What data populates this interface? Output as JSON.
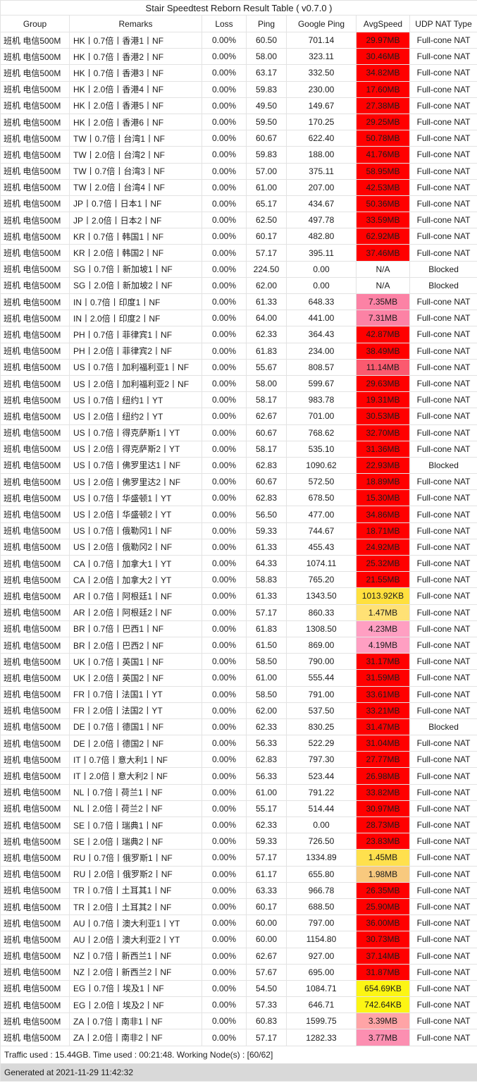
{
  "title": "Stair Speedtest Reborn Result Table ( v0.7.0 )",
  "palette": {
    "speed_red": "#FF0000",
    "speed_coral": "#FB5A6F",
    "speed_pink": "#FC82A5",
    "speed_light_pink": "#FF9FC2",
    "speed_rose": "#FC8FB1",
    "speed_salmon": "#FFA4A6",
    "speed_orange": "#F8C97E",
    "speed_pale_yellow": "#FFE175",
    "speed_yellow": "#FFE04D",
    "speed_gold": "#FFE03E",
    "speed_bright_yellow": "#FCF514",
    "generated_row_bg": "#D9D9D9",
    "border": "#E3E3E3"
  },
  "table": {
    "columns": [
      "Group",
      "Remarks",
      "Loss",
      "Ping",
      "Google Ping",
      "AvgSpeed",
      "UDP NAT Type"
    ],
    "column_keys": [
      "group",
      "remarks",
      "loss",
      "ping",
      "google_ping",
      "avgspeed",
      "udp_nat_type"
    ],
    "rows": [
      {
        "group": "班机 电信500M",
        "remarks": "HK丨0.7倍丨香港1丨NF",
        "loss": "0.00%",
        "ping": "60.50",
        "google_ping": "701.14",
        "avgspeed": "29.97MB",
        "speed_color": "#FF0000",
        "nat": "Full-cone NAT"
      },
      {
        "group": "班机 电信500M",
        "remarks": "HK丨0.7倍丨香港2丨NF",
        "loss": "0.00%",
        "ping": "58.00",
        "google_ping": "323.11",
        "avgspeed": "30.46MB",
        "speed_color": "#FF0000",
        "nat": "Full-cone NAT"
      },
      {
        "group": "班机 电信500M",
        "remarks": "HK丨0.7倍丨香港3丨NF",
        "loss": "0.00%",
        "ping": "63.17",
        "google_ping": "332.50",
        "avgspeed": "34.82MB",
        "speed_color": "#FF0000",
        "nat": "Full-cone NAT"
      },
      {
        "group": "班机 电信500M",
        "remarks": "HK丨2.0倍丨香港4丨NF",
        "loss": "0.00%",
        "ping": "59.83",
        "google_ping": "230.00",
        "avgspeed": "17.60MB",
        "speed_color": "#FF0000",
        "nat": "Full-cone NAT"
      },
      {
        "group": "班机 电信500M",
        "remarks": "HK丨2.0倍丨香港5丨NF",
        "loss": "0.00%",
        "ping": "49.50",
        "google_ping": "149.67",
        "avgspeed": "27.38MB",
        "speed_color": "#FF0000",
        "nat": "Full-cone NAT"
      },
      {
        "group": "班机 电信500M",
        "remarks": "HK丨2.0倍丨香港6丨NF",
        "loss": "0.00%",
        "ping": "59.50",
        "google_ping": "170.25",
        "avgspeed": "29.25MB",
        "speed_color": "#FF0000",
        "nat": "Full-cone NAT"
      },
      {
        "group": "班机 电信500M",
        "remarks": "TW丨0.7倍丨台湾1丨NF",
        "loss": "0.00%",
        "ping": "60.67",
        "google_ping": "622.40",
        "avgspeed": "50.78MB",
        "speed_color": "#FF0000",
        "nat": "Full-cone NAT"
      },
      {
        "group": "班机 电信500M",
        "remarks": "TW丨2.0倍丨台湾2丨NF",
        "loss": "0.00%",
        "ping": "59.83",
        "google_ping": "188.00",
        "avgspeed": "41.76MB",
        "speed_color": "#FF0000",
        "nat": "Full-cone NAT"
      },
      {
        "group": "班机 电信500M",
        "remarks": "TW丨0.7倍丨台湾3丨NF",
        "loss": "0.00%",
        "ping": "57.00",
        "google_ping": "375.11",
        "avgspeed": "58.95MB",
        "speed_color": "#FF0000",
        "nat": "Full-cone NAT"
      },
      {
        "group": "班机 电信500M",
        "remarks": "TW丨2.0倍丨台湾4丨NF",
        "loss": "0.00%",
        "ping": "61.00",
        "google_ping": "207.00",
        "avgspeed": "42.53MB",
        "speed_color": "#FF0000",
        "nat": "Full-cone NAT"
      },
      {
        "group": "班机 电信500M",
        "remarks": "JP丨0.7倍丨日本1丨NF",
        "loss": "0.00%",
        "ping": "65.17",
        "google_ping": "434.67",
        "avgspeed": "50.36MB",
        "speed_color": "#FF0000",
        "nat": "Full-cone NAT"
      },
      {
        "group": "班机 电信500M",
        "remarks": "JP丨2.0倍丨日本2丨NF",
        "loss": "0.00%",
        "ping": "62.50",
        "google_ping": "497.78",
        "avgspeed": "33.59MB",
        "speed_color": "#FF0000",
        "nat": "Full-cone NAT"
      },
      {
        "group": "班机 电信500M",
        "remarks": "KR丨0.7倍丨韩国1丨NF",
        "loss": "0.00%",
        "ping": "60.17",
        "google_ping": "482.80",
        "avgspeed": "62.92MB",
        "speed_color": "#FF0000",
        "nat": "Full-cone NAT"
      },
      {
        "group": "班机 电信500M",
        "remarks": "KR丨2.0倍丨韩国2丨NF",
        "loss": "0.00%",
        "ping": "57.17",
        "google_ping": "395.11",
        "avgspeed": "37.46MB",
        "speed_color": "#FF0000",
        "nat": "Full-cone NAT"
      },
      {
        "group": "班机 电信500M",
        "remarks": "SG丨0.7倍丨新加坡1丨NF",
        "loss": "0.00%",
        "ping": "224.50",
        "google_ping": "0.00",
        "avgspeed": "N/A",
        "speed_color": "",
        "nat": "Blocked"
      },
      {
        "group": "班机 电信500M",
        "remarks": "SG丨2.0倍丨新加坡2丨NF",
        "loss": "0.00%",
        "ping": "62.00",
        "google_ping": "0.00",
        "avgspeed": "N/A",
        "speed_color": "",
        "nat": "Blocked"
      },
      {
        "group": "班机 电信500M",
        "remarks": "IN丨0.7倍丨印度1丨NF",
        "loss": "0.00%",
        "ping": "61.33",
        "google_ping": "648.33",
        "avgspeed": "7.35MB",
        "speed_color": "#FC82A5",
        "nat": "Full-cone NAT"
      },
      {
        "group": "班机 电信500M",
        "remarks": "IN丨2.0倍丨印度2丨NF",
        "loss": "0.00%",
        "ping": "64.00",
        "google_ping": "441.00",
        "avgspeed": "7.31MB",
        "speed_color": "#FC82A5",
        "nat": "Full-cone NAT"
      },
      {
        "group": "班机 电信500M",
        "remarks": "PH丨0.7倍丨菲律宾1丨NF",
        "loss": "0.00%",
        "ping": "62.33",
        "google_ping": "364.43",
        "avgspeed": "42.87MB",
        "speed_color": "#FF0000",
        "nat": "Full-cone NAT"
      },
      {
        "group": "班机 电信500M",
        "remarks": "PH丨2.0倍丨菲律宾2丨NF",
        "loss": "0.00%",
        "ping": "61.83",
        "google_ping": "234.00",
        "avgspeed": "38.49MB",
        "speed_color": "#FF0000",
        "nat": "Full-cone NAT"
      },
      {
        "group": "班机 电信500M",
        "remarks": "US丨0.7倍丨加利福利亚1丨NF",
        "loss": "0.00%",
        "ping": "55.67",
        "google_ping": "808.57",
        "avgspeed": "11.14MB",
        "speed_color": "#FB5A6F",
        "nat": "Full-cone NAT"
      },
      {
        "group": "班机 电信500M",
        "remarks": "US丨2.0倍丨加利福利亚2丨NF",
        "loss": "0.00%",
        "ping": "58.00",
        "google_ping": "599.67",
        "avgspeed": "29.63MB",
        "speed_color": "#FF0000",
        "nat": "Full-cone NAT"
      },
      {
        "group": "班机 电信500M",
        "remarks": "US丨0.7倍丨纽约1丨YT",
        "loss": "0.00%",
        "ping": "58.17",
        "google_ping": "983.78",
        "avgspeed": "19.31MB",
        "speed_color": "#FF0000",
        "nat": "Full-cone NAT"
      },
      {
        "group": "班机 电信500M",
        "remarks": "US丨2.0倍丨纽约2丨YT",
        "loss": "0.00%",
        "ping": "62.67",
        "google_ping": "701.00",
        "avgspeed": "30.53MB",
        "speed_color": "#FF0000",
        "nat": "Full-cone NAT"
      },
      {
        "group": "班机 电信500M",
        "remarks": "US丨0.7倍丨得克萨斯1丨YT",
        "loss": "0.00%",
        "ping": "60.67",
        "google_ping": "768.62",
        "avgspeed": "32.70MB",
        "speed_color": "#FF0000",
        "nat": "Full-cone NAT"
      },
      {
        "group": "班机 电信500M",
        "remarks": "US丨2.0倍丨得克萨斯2丨YT",
        "loss": "0.00%",
        "ping": "58.17",
        "google_ping": "535.10",
        "avgspeed": "31.36MB",
        "speed_color": "#FF0000",
        "nat": "Full-cone NAT"
      },
      {
        "group": "班机 电信500M",
        "remarks": "US丨0.7倍丨佛罗里达1丨NF",
        "loss": "0.00%",
        "ping": "62.83",
        "google_ping": "1090.62",
        "avgspeed": "22.93MB",
        "speed_color": "#FF0000",
        "nat": "Blocked"
      },
      {
        "group": "班机 电信500M",
        "remarks": "US丨2.0倍丨佛罗里达2丨NF",
        "loss": "0.00%",
        "ping": "60.67",
        "google_ping": "572.50",
        "avgspeed": "18.89MB",
        "speed_color": "#FF0000",
        "nat": "Full-cone NAT"
      },
      {
        "group": "班机 电信500M",
        "remarks": "US丨0.7倍丨华盛顿1丨YT",
        "loss": "0.00%",
        "ping": "62.83",
        "google_ping": "678.50",
        "avgspeed": "15.30MB",
        "speed_color": "#FF0000",
        "nat": "Full-cone NAT"
      },
      {
        "group": "班机 电信500M",
        "remarks": "US丨2.0倍丨华盛顿2丨YT",
        "loss": "0.00%",
        "ping": "56.50",
        "google_ping": "477.00",
        "avgspeed": "34.86MB",
        "speed_color": "#FF0000",
        "nat": "Full-cone NAT"
      },
      {
        "group": "班机 电信500M",
        "remarks": "US丨0.7倍丨俄勒冈1丨NF",
        "loss": "0.00%",
        "ping": "59.33",
        "google_ping": "744.67",
        "avgspeed": "18.71MB",
        "speed_color": "#FF0000",
        "nat": "Full-cone NAT"
      },
      {
        "group": "班机 电信500M",
        "remarks": "US丨2.0倍丨俄勒冈2丨NF",
        "loss": "0.00%",
        "ping": "61.33",
        "google_ping": "455.43",
        "avgspeed": "24.92MB",
        "speed_color": "#FF0000",
        "nat": "Full-cone NAT"
      },
      {
        "group": "班机 电信500M",
        "remarks": "CA丨0.7倍丨加拿大1丨YT",
        "loss": "0.00%",
        "ping": "64.33",
        "google_ping": "1074.11",
        "avgspeed": "25.32MB",
        "speed_color": "#FF0000",
        "nat": "Full-cone NAT"
      },
      {
        "group": "班机 电信500M",
        "remarks": "CA丨2.0倍丨加拿大2丨YT",
        "loss": "0.00%",
        "ping": "58.83",
        "google_ping": "765.20",
        "avgspeed": "21.55MB",
        "speed_color": "#FF0000",
        "nat": "Full-cone NAT"
      },
      {
        "group": "班机 电信500M",
        "remarks": "AR丨0.7倍丨阿根廷1丨NF",
        "loss": "0.00%",
        "ping": "61.33",
        "google_ping": "1343.50",
        "avgspeed": "1013.92KB",
        "speed_color": "#FFE03E",
        "nat": "Full-cone NAT"
      },
      {
        "group": "班机 电信500M",
        "remarks": "AR丨2.0倍丨阿根廷2丨NF",
        "loss": "0.00%",
        "ping": "57.17",
        "google_ping": "860.33",
        "avgspeed": "1.47MB",
        "speed_color": "#FFE175",
        "nat": "Full-cone NAT"
      },
      {
        "group": "班机 电信500M",
        "remarks": "BR丨0.7倍丨巴西1丨NF",
        "loss": "0.00%",
        "ping": "61.83",
        "google_ping": "1308.50",
        "avgspeed": "4.23MB",
        "speed_color": "#FF9FC2",
        "nat": "Full-cone NAT"
      },
      {
        "group": "班机 电信500M",
        "remarks": "BR丨2.0倍丨巴西2丨NF",
        "loss": "0.00%",
        "ping": "61.50",
        "google_ping": "869.00",
        "avgspeed": "4.19MB",
        "speed_color": "#FF9FC2",
        "nat": "Full-cone NAT"
      },
      {
        "group": "班机 电信500M",
        "remarks": "UK丨0.7倍丨英国1丨NF",
        "loss": "0.00%",
        "ping": "58.50",
        "google_ping": "790.00",
        "avgspeed": "31.17MB",
        "speed_color": "#FF0000",
        "nat": "Full-cone NAT"
      },
      {
        "group": "班机 电信500M",
        "remarks": "UK丨2.0倍丨英国2丨NF",
        "loss": "0.00%",
        "ping": "61.00",
        "google_ping": "555.44",
        "avgspeed": "31.59MB",
        "speed_color": "#FF0000",
        "nat": "Full-cone NAT"
      },
      {
        "group": "班机 电信500M",
        "remarks": "FR丨0.7倍丨法国1丨YT",
        "loss": "0.00%",
        "ping": "58.50",
        "google_ping": "791.00",
        "avgspeed": "33.61MB",
        "speed_color": "#FF0000",
        "nat": "Full-cone NAT"
      },
      {
        "group": "班机 电信500M",
        "remarks": "FR丨2.0倍丨法国2丨YT",
        "loss": "0.00%",
        "ping": "62.00",
        "google_ping": "537.50",
        "avgspeed": "33.21MB",
        "speed_color": "#FF0000",
        "nat": "Full-cone NAT"
      },
      {
        "group": "班机 电信500M",
        "remarks": "DE丨0.7倍丨德国1丨NF",
        "loss": "0.00%",
        "ping": "62.33",
        "google_ping": "830.25",
        "avgspeed": "31.47MB",
        "speed_color": "#FF0000",
        "nat": "Blocked"
      },
      {
        "group": "班机 电信500M",
        "remarks": "DE丨2.0倍丨德国2丨NF",
        "loss": "0.00%",
        "ping": "56.33",
        "google_ping": "522.29",
        "avgspeed": "31.04MB",
        "speed_color": "#FF0000",
        "nat": "Full-cone NAT"
      },
      {
        "group": "班机 电信500M",
        "remarks": "IT丨0.7倍丨意大利1丨NF",
        "loss": "0.00%",
        "ping": "62.83",
        "google_ping": "797.30",
        "avgspeed": "27.77MB",
        "speed_color": "#FF0000",
        "nat": "Full-cone NAT"
      },
      {
        "group": "班机 电信500M",
        "remarks": "IT丨2.0倍丨意大利2丨NF",
        "loss": "0.00%",
        "ping": "56.33",
        "google_ping": "523.44",
        "avgspeed": "26.98MB",
        "speed_color": "#FF0000",
        "nat": "Full-cone NAT"
      },
      {
        "group": "班机 电信500M",
        "remarks": "NL丨0.7倍丨荷兰1丨NF",
        "loss": "0.00%",
        "ping": "61.00",
        "google_ping": "791.22",
        "avgspeed": "33.82MB",
        "speed_color": "#FF0000",
        "nat": "Full-cone NAT"
      },
      {
        "group": "班机 电信500M",
        "remarks": "NL丨2.0倍丨荷兰2丨NF",
        "loss": "0.00%",
        "ping": "55.17",
        "google_ping": "514.44",
        "avgspeed": "30.97MB",
        "speed_color": "#FF0000",
        "nat": "Full-cone NAT"
      },
      {
        "group": "班机 电信500M",
        "remarks": "SE丨0.7倍丨瑞典1丨NF",
        "loss": "0.00%",
        "ping": "62.33",
        "google_ping": "0.00",
        "avgspeed": "28.73MB",
        "speed_color": "#FF0000",
        "nat": "Full-cone NAT"
      },
      {
        "group": "班机 电信500M",
        "remarks": "SE丨2.0倍丨瑞典2丨NF",
        "loss": "0.00%",
        "ping": "59.33",
        "google_ping": "726.50",
        "avgspeed": "23.83MB",
        "speed_color": "#FF0000",
        "nat": "Full-cone NAT"
      },
      {
        "group": "班机 电信500M",
        "remarks": "RU丨0.7倍丨俄罗斯1丨NF",
        "loss": "0.00%",
        "ping": "57.17",
        "google_ping": "1334.89",
        "avgspeed": "1.45MB",
        "speed_color": "#FFE04D",
        "nat": "Full-cone NAT"
      },
      {
        "group": "班机 电信500M",
        "remarks": "RU丨2.0倍丨俄罗斯2丨NF",
        "loss": "0.00%",
        "ping": "61.17",
        "google_ping": "655.80",
        "avgspeed": "1.98MB",
        "speed_color": "#F8C97E",
        "nat": "Full-cone NAT"
      },
      {
        "group": "班机 电信500M",
        "remarks": "TR丨0.7倍丨土耳其1丨NF",
        "loss": "0.00%",
        "ping": "63.33",
        "google_ping": "966.78",
        "avgspeed": "26.35MB",
        "speed_color": "#FF0000",
        "nat": "Full-cone NAT"
      },
      {
        "group": "班机 电信500M",
        "remarks": "TR丨2.0倍丨土耳其2丨NF",
        "loss": "0.00%",
        "ping": "60.17",
        "google_ping": "688.50",
        "avgspeed": "25.90MB",
        "speed_color": "#FF0000",
        "nat": "Full-cone NAT"
      },
      {
        "group": "班机 电信500M",
        "remarks": "AU丨0.7倍丨澳大利亚1丨YT",
        "loss": "0.00%",
        "ping": "60.00",
        "google_ping": "797.00",
        "avgspeed": "36.00MB",
        "speed_color": "#FF0000",
        "nat": "Full-cone NAT"
      },
      {
        "group": "班机 电信500M",
        "remarks": "AU丨2.0倍丨澳大利亚2丨YT",
        "loss": "0.00%",
        "ping": "60.00",
        "google_ping": "1154.80",
        "avgspeed": "30.73MB",
        "speed_color": "#FF0000",
        "nat": "Full-cone NAT"
      },
      {
        "group": "班机 电信500M",
        "remarks": "NZ丨0.7倍丨新西兰1丨NF",
        "loss": "0.00%",
        "ping": "62.67",
        "google_ping": "927.00",
        "avgspeed": "37.14MB",
        "speed_color": "#FF0000",
        "nat": "Full-cone NAT"
      },
      {
        "group": "班机 电信500M",
        "remarks": "NZ丨2.0倍丨新西兰2丨NF",
        "loss": "0.00%",
        "ping": "57.67",
        "google_ping": "695.00",
        "avgspeed": "31.87MB",
        "speed_color": "#FF0000",
        "nat": "Full-cone NAT"
      },
      {
        "group": "班机 电信500M",
        "remarks": "EG丨0.7倍丨埃及1丨NF",
        "loss": "0.00%",
        "ping": "54.50",
        "google_ping": "1084.71",
        "avgspeed": "654.69KB",
        "speed_color": "#FCF514",
        "nat": "Full-cone NAT"
      },
      {
        "group": "班机 电信500M",
        "remarks": "EG丨2.0倍丨埃及2丨NF",
        "loss": "0.00%",
        "ping": "57.33",
        "google_ping": "646.71",
        "avgspeed": "742.64KB",
        "speed_color": "#FCF514",
        "nat": "Full-cone NAT"
      },
      {
        "group": "班机 电信500M",
        "remarks": "ZA丨0.7倍丨南非1丨NF",
        "loss": "0.00%",
        "ping": "60.83",
        "google_ping": "1599.75",
        "avgspeed": "3.39MB",
        "speed_color": "#FFA4A6",
        "nat": "Full-cone NAT"
      },
      {
        "group": "班机 电信500M",
        "remarks": "ZA丨2.0倍丨南非2丨NF",
        "loss": "0.00%",
        "ping": "57.17",
        "google_ping": "1282.33",
        "avgspeed": "3.77MB",
        "speed_color": "#FC8FB1",
        "nat": "Full-cone NAT"
      }
    ]
  },
  "footer": {
    "stats": "Traffic used : 15.44GB. Time used : 00:21:48. Working Node(s) : [60/62]",
    "generated": "Generated at 2021-11-29 11:42:32"
  }
}
